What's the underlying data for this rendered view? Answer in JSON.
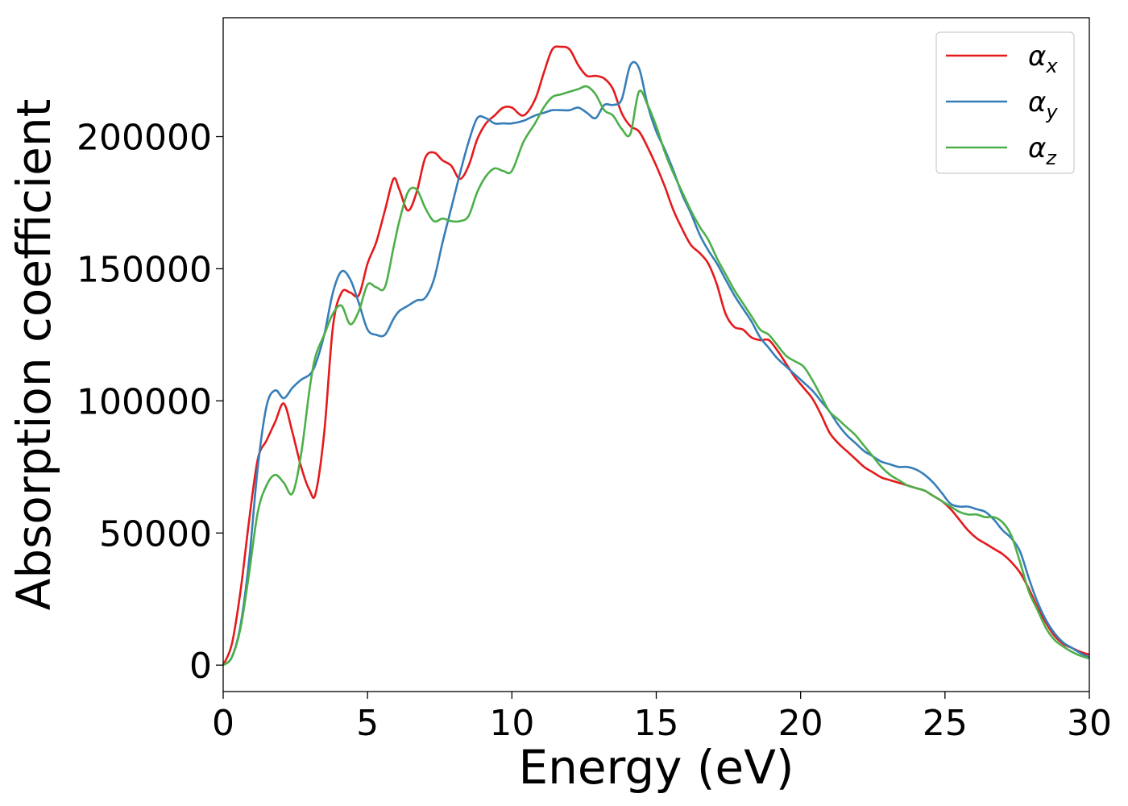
{
  "chart_data": {
    "type": "line",
    "title": "",
    "xlabel": "Energy (eV)",
    "ylabel": "Absorption coefficient",
    "xlim": [
      0,
      30
    ],
    "ylim": [
      -10000,
      245000
    ],
    "xticks": [
      0,
      5,
      10,
      15,
      20,
      25,
      30
    ],
    "yticks": [
      0,
      50000,
      100000,
      150000,
      200000
    ],
    "xtick_labels": [
      "0",
      "5",
      "10",
      "15",
      "20",
      "25",
      "30"
    ],
    "ytick_labels": [
      "0",
      "50000",
      "100000",
      "150000",
      "200000"
    ],
    "grid": false,
    "legend_position": "top-right",
    "series": [
      {
        "name": "αx",
        "symbol": "α",
        "subscript": "x",
        "color": "#e41a1c",
        "x": [
          0,
          0.3,
          0.6,
          0.9,
          1.2,
          1.5,
          1.8,
          2.1,
          2.4,
          2.7,
          3.0,
          3.2,
          3.5,
          3.8,
          4.1,
          4.4,
          4.7,
          5.0,
          5.3,
          5.6,
          5.9,
          6.1,
          6.4,
          6.7,
          7.0,
          7.3,
          7.6,
          7.9,
          8.2,
          8.5,
          8.8,
          9.1,
          9.4,
          9.7,
          10.0,
          10.4,
          10.8,
          11.1,
          11.4,
          11.7,
          12.0,
          12.3,
          12.6,
          12.9,
          13.2,
          13.5,
          13.8,
          14.1,
          14.4,
          14.7,
          15.0,
          15.3,
          15.6,
          15.9,
          16.2,
          16.5,
          16.8,
          17.1,
          17.4,
          17.7,
          18.0,
          18.3,
          18.6,
          18.9,
          19.2,
          19.5,
          19.8,
          20.1,
          20.4,
          20.7,
          21.0,
          21.3,
          21.6,
          21.9,
          22.2,
          22.5,
          22.8,
          23.1,
          23.4,
          23.7,
          24.0,
          24.3,
          24.6,
          24.9,
          25.2,
          25.5,
          25.8,
          26.1,
          26.4,
          26.7,
          27.0,
          27.3,
          27.6,
          27.9,
          28.2,
          28.5,
          28.8,
          29.1,
          29.4,
          29.7,
          30.0
        ],
        "y": [
          0,
          8000,
          28000,
          55000,
          78000,
          85000,
          92000,
          99000,
          88000,
          75000,
          66000,
          65000,
          88000,
          128000,
          141000,
          141000,
          140000,
          152000,
          160000,
          172000,
          184000,
          180000,
          172000,
          179000,
          192000,
          194000,
          191000,
          189000,
          184000,
          189000,
          199000,
          205000,
          208000,
          211000,
          211000,
          208000,
          214000,
          224000,
          233000,
          234000,
          233000,
          227000,
          223000,
          223000,
          222000,
          218000,
          209000,
          204000,
          202000,
          196000,
          189000,
          181000,
          172000,
          165000,
          159000,
          156000,
          152000,
          144000,
          133000,
          128000,
          127000,
          124000,
          123000,
          123000,
          119000,
          114000,
          109000,
          105000,
          101000,
          95000,
          88000,
          84000,
          81000,
          78000,
          75000,
          73000,
          71000,
          70000,
          69000,
          68000,
          67000,
          66000,
          64000,
          62000,
          59000,
          55000,
          51000,
          48000,
          46000,
          44000,
          42000,
          39000,
          35000,
          29000,
          22000,
          16000,
          11000,
          8000,
          6500,
          5000,
          4000
        ]
      },
      {
        "name": "αy",
        "symbol": "α",
        "subscript": "y",
        "color": "#377eb8",
        "x": [
          0,
          0.3,
          0.6,
          0.9,
          1.2,
          1.5,
          1.8,
          2.1,
          2.4,
          2.7,
          3.0,
          3.2,
          3.5,
          3.8,
          4.1,
          4.4,
          4.7,
          5.0,
          5.3,
          5.6,
          5.9,
          6.1,
          6.4,
          6.7,
          7.0,
          7.3,
          7.6,
          7.9,
          8.2,
          8.5,
          8.8,
          9.1,
          9.4,
          9.7,
          10.0,
          10.4,
          10.8,
          11.1,
          11.4,
          11.7,
          12.0,
          12.3,
          12.6,
          12.9,
          13.2,
          13.5,
          13.8,
          14.1,
          14.4,
          14.7,
          15.0,
          15.3,
          15.6,
          15.9,
          16.2,
          16.5,
          16.8,
          17.1,
          17.4,
          17.7,
          18.0,
          18.3,
          18.6,
          18.9,
          19.2,
          19.5,
          19.8,
          20.1,
          20.4,
          20.7,
          21.0,
          21.3,
          21.6,
          21.9,
          22.2,
          22.5,
          22.8,
          23.1,
          23.4,
          23.7,
          24.0,
          24.3,
          24.6,
          24.9,
          25.2,
          25.5,
          25.8,
          26.1,
          26.4,
          26.7,
          27.0,
          27.3,
          27.6,
          27.9,
          28.2,
          28.5,
          28.8,
          29.1,
          29.4,
          29.7,
          30.0
        ],
        "y": [
          0,
          3000,
          15000,
          40000,
          75000,
          98000,
          104000,
          101000,
          105000,
          108000,
          110000,
          114000,
          125000,
          141000,
          149000,
          146000,
          137000,
          127000,
          125000,
          125000,
          131000,
          134000,
          136000,
          138000,
          139000,
          146000,
          160000,
          173000,
          186000,
          198000,
          207000,
          207000,
          205000,
          205000,
          205000,
          206000,
          208000,
          209000,
          210000,
          210000,
          210000,
          211000,
          209000,
          207000,
          212000,
          212000,
          214000,
          227000,
          226000,
          212000,
          202000,
          195000,
          187000,
          178000,
          171000,
          163000,
          157000,
          152000,
          146000,
          140000,
          135000,
          130000,
          124000,
          120000,
          116000,
          113000,
          110000,
          107000,
          104000,
          100000,
          96000,
          91000,
          87000,
          84000,
          81000,
          79000,
          77000,
          76000,
          75000,
          75000,
          74000,
          72000,
          69000,
          65000,
          61000,
          60000,
          60000,
          59000,
          58000,
          55000,
          51000,
          48000,
          43000,
          33000,
          24000,
          17000,
          12000,
          8500,
          6500,
          4500,
          3000
        ]
      },
      {
        "name": "αz",
        "symbol": "α",
        "subscript": "z",
        "color": "#4daf4a",
        "x": [
          0,
          0.3,
          0.6,
          0.9,
          1.2,
          1.5,
          1.8,
          2.1,
          2.4,
          2.7,
          3.0,
          3.2,
          3.5,
          3.8,
          4.1,
          4.4,
          4.7,
          5.0,
          5.3,
          5.6,
          5.9,
          6.1,
          6.4,
          6.7,
          7.0,
          7.3,
          7.6,
          7.9,
          8.2,
          8.5,
          8.8,
          9.1,
          9.4,
          9.7,
          10.0,
          10.4,
          10.8,
          11.1,
          11.4,
          11.7,
          12.0,
          12.3,
          12.6,
          12.9,
          13.2,
          13.5,
          13.8,
          14.1,
          14.4,
          14.7,
          15.0,
          15.3,
          15.6,
          15.9,
          16.2,
          16.5,
          16.8,
          17.1,
          17.4,
          17.7,
          18.0,
          18.3,
          18.6,
          18.9,
          19.2,
          19.5,
          19.8,
          20.1,
          20.4,
          20.7,
          21.0,
          21.3,
          21.6,
          21.9,
          22.2,
          22.5,
          22.8,
          23.1,
          23.4,
          23.7,
          24.0,
          24.3,
          24.6,
          24.9,
          25.2,
          25.5,
          25.8,
          26.1,
          26.4,
          26.7,
          27.0,
          27.3,
          27.6,
          27.9,
          28.2,
          28.5,
          28.8,
          29.1,
          29.4,
          29.7,
          30.0
        ],
        "y": [
          0,
          3000,
          14000,
          35000,
          58000,
          68000,
          72000,
          69000,
          65000,
          80000,
          105000,
          117000,
          125000,
          133000,
          136000,
          129000,
          134000,
          144000,
          143000,
          143000,
          158000,
          168000,
          179000,
          180000,
          173000,
          168000,
          169000,
          168000,
          168000,
          170000,
          179000,
          185000,
          188000,
          187000,
          187000,
          198000,
          205000,
          211000,
          215000,
          216000,
          217000,
          218000,
          219000,
          216000,
          210000,
          208000,
          203000,
          201000,
          217000,
          212000,
          204000,
          194000,
          186000,
          179000,
          172000,
          166000,
          161000,
          154000,
          148000,
          142000,
          137000,
          132000,
          127000,
          125000,
          121000,
          117000,
          115000,
          113000,
          108000,
          102000,
          96000,
          93000,
          90000,
          87000,
          83000,
          79000,
          75000,
          72000,
          70000,
          68000,
          67000,
          66000,
          64000,
          62000,
          60000,
          58000,
          57000,
          57000,
          56000,
          56000,
          54000,
          49000,
          39000,
          28000,
          21000,
          14000,
          9500,
          7000,
          5000,
          3500,
          2500
        ]
      }
    ]
  }
}
